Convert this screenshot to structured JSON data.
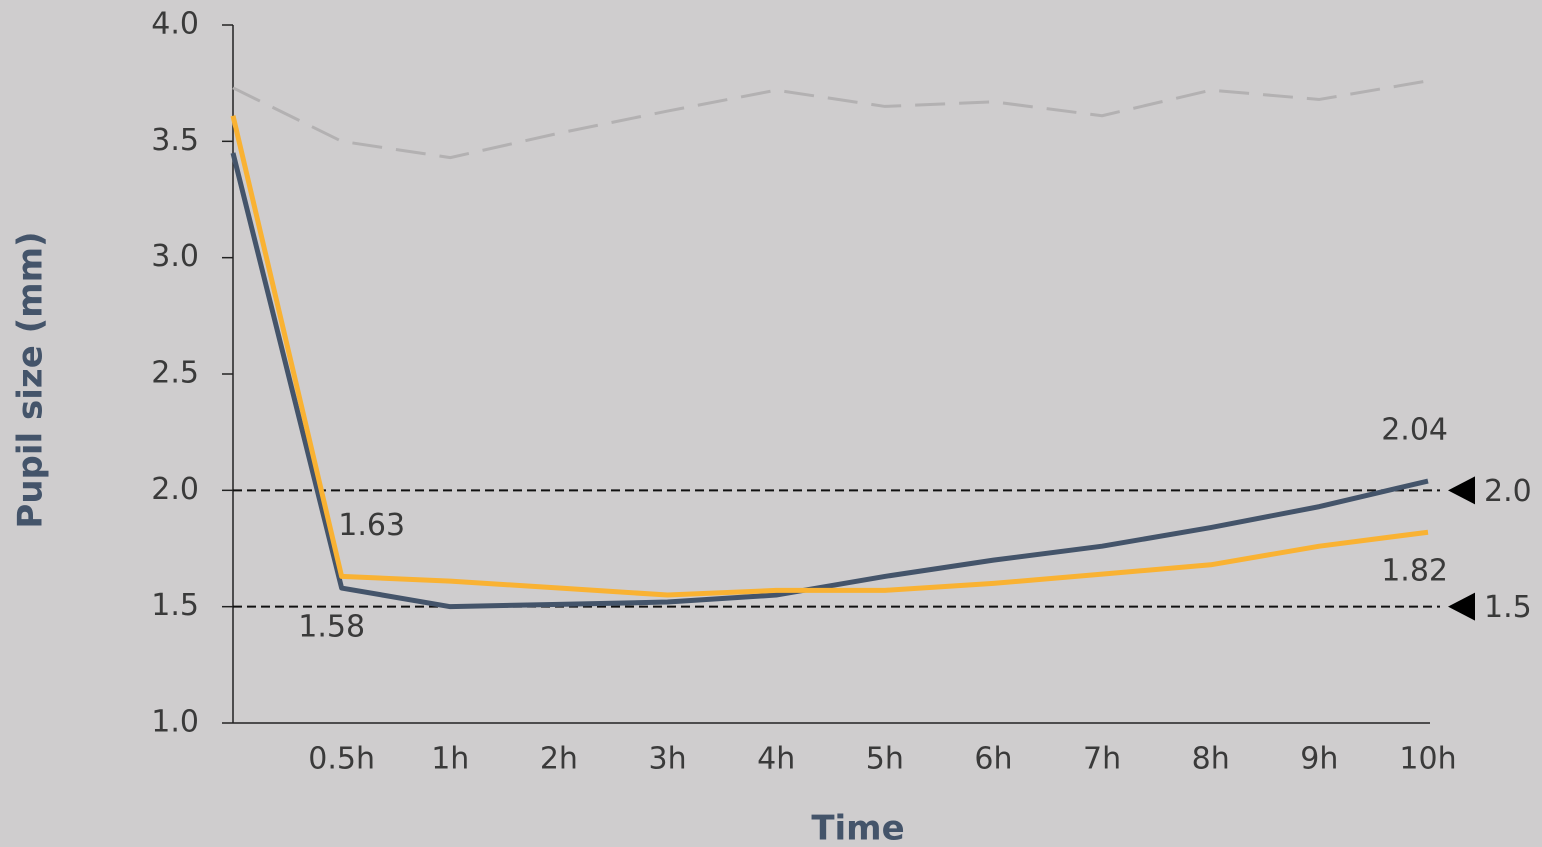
{
  "chart_data": {
    "type": "line",
    "x_label": "Time",
    "y_label": "Pupil size (mm)",
    "categories": [
      null,
      "0.5h",
      "1h",
      "2h",
      "3h",
      "4h",
      "5h",
      "6h",
      "7h",
      "8h",
      "9h",
      "10h"
    ],
    "series": [
      {
        "color": "#b3b1b2",
        "dashed": true,
        "values": [
          3.73,
          3.5,
          3.43,
          3.535,
          3.63,
          3.72,
          3.65,
          3.67,
          3.61,
          3.72,
          3.68,
          3.76
        ]
      },
      {
        "color": "#44546a",
        "dashed": false,
        "values": [
          3.45,
          1.58,
          1.5,
          1.51,
          1.52,
          1.55,
          1.63,
          1.7,
          1.76,
          1.84,
          1.93,
          2.04
        ],
        "value_labels": [
          null,
          "1.58",
          null,
          null,
          null,
          null,
          null,
          null,
          null,
          null,
          null,
          "2.04"
        ]
      },
      {
        "color": "#f9b233",
        "dashed": false,
        "values": [
          3.61,
          1.63,
          1.61,
          1.58,
          1.55,
          1.57,
          1.57,
          1.6,
          1.64,
          1.68,
          1.76,
          1.82
        ],
        "value_labels": [
          null,
          "1.63",
          null,
          null,
          null,
          null,
          null,
          null,
          null,
          null,
          null,
          "1.82"
        ]
      }
    ],
    "reference_lines": [
      {
        "value": 2,
        "label": "2.0"
      },
      {
        "value": 1.5,
        "label": "1.5"
      }
    ],
    "ylim": [
      1,
      4
    ],
    "yticks": [
      {
        "value": 1,
        "label": "1.0"
      },
      {
        "value": 1.5,
        "label": "1.5"
      },
      {
        "value": 2,
        "label": "2.0"
      },
      {
        "value": 2.5,
        "label": "2.5"
      },
      {
        "value": 3,
        "label": "3.0"
      },
      {
        "value": 3.5,
        "label": "3.5"
      },
      {
        "value": 4,
        "label": "4.0"
      }
    ],
    "grid": false
  }
}
